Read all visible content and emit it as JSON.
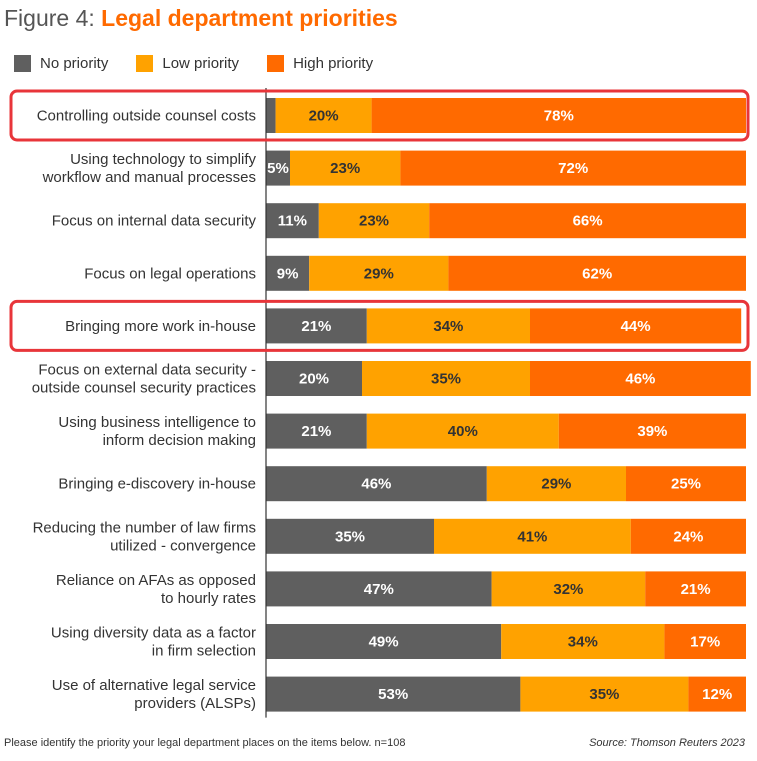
{
  "figure": {
    "prefix": "Figure 4: ",
    "title": "Legal department priorities"
  },
  "colors": {
    "no_priority": "#5f5f5f",
    "low_priority": "#ffa200",
    "high_priority": "#ff6a00",
    "highlight": "#e8353a",
    "title_accent": "#ff6a00"
  },
  "chart_data": {
    "type": "bar",
    "orientation": "horizontal",
    "stacked": true,
    "percent": true,
    "legend_position": "top-left",
    "categories": [
      [
        "Controlling outside counsel costs"
      ],
      [
        "Using technology to simplify",
        "workflow and manual processes"
      ],
      [
        "Focus on internal data security"
      ],
      [
        "Focus on legal operations"
      ],
      [
        "Bringing more work in-house"
      ],
      [
        "Focus on external data security -",
        "outside counsel security practices"
      ],
      [
        "Using business intelligence to",
        "inform decision making"
      ],
      [
        "Bringing e-discovery in-house"
      ],
      [
        "Reducing the number of law firms",
        "utilized - convergence"
      ],
      [
        "Reliance on AFAs as opposed",
        "to hourly rates"
      ],
      [
        "Using diversity data as a factor",
        "in firm selection"
      ],
      [
        "Use of alternative legal service",
        "providers (ALSPs)"
      ]
    ],
    "series": [
      {
        "name": "No priority",
        "values": [
          2,
          5,
          11,
          9,
          21,
          20,
          21,
          46,
          35,
          47,
          49,
          53
        ],
        "labels": [
          "",
          "5%",
          "11%",
          "9%",
          "21%",
          "20%",
          "21%",
          "46%",
          "35%",
          "47%",
          "49%",
          "53%"
        ]
      },
      {
        "name": "Low priority",
        "values": [
          20,
          23,
          23,
          29,
          34,
          35,
          40,
          29,
          41,
          32,
          34,
          35
        ],
        "labels": [
          "20%",
          "23%",
          "23%",
          "29%",
          "34%",
          "35%",
          "40%",
          "29%",
          "41%",
          "32%",
          "34%",
          "35%"
        ]
      },
      {
        "name": "High priority",
        "values": [
          78,
          72,
          66,
          62,
          44,
          46,
          39,
          25,
          24,
          21,
          17,
          12
        ],
        "labels": [
          "78%",
          "72%",
          "66%",
          "62%",
          "44%",
          "46%",
          "39%",
          "25%",
          "24%",
          "21%",
          "17%",
          "12%"
        ]
      }
    ],
    "highlighted_rows": [
      0,
      4
    ]
  },
  "footer": {
    "note": "Please identify the priority your legal department places on the items below. n=108",
    "source": "Source: Thomson Reuters 2023"
  }
}
